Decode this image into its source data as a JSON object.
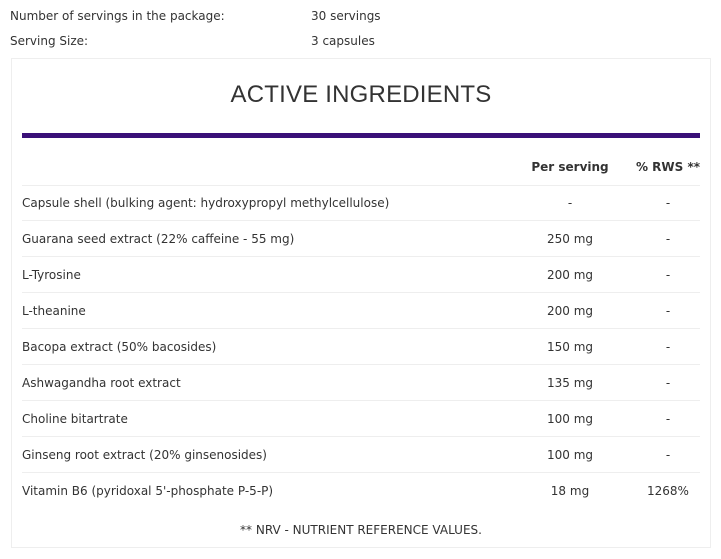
{
  "info": [
    {
      "label": "Number of servings in the package:",
      "value": "30 servings"
    },
    {
      "label": "Serving Size:",
      "value": "3 capsules"
    }
  ],
  "panel": {
    "title": "ACTIVE INGREDIENTS",
    "accent_color": "#3a1078",
    "columns": [
      "",
      "Per serving",
      "% RWS **"
    ],
    "rows": [
      {
        "name": "Capsule shell (bulking agent: hydroxypropyl methylcellulose)",
        "per_serving": "-",
        "rws": "-"
      },
      {
        "name": "Guarana seed extract (22% caffeine - 55 mg)",
        "per_serving": "250 mg",
        "rws": "-"
      },
      {
        "name": "L-Tyrosine",
        "per_serving": "200 mg",
        "rws": "-"
      },
      {
        "name": "L-theanine",
        "per_serving": "200 mg",
        "rws": "-"
      },
      {
        "name": "Bacopa extract (50% bacosides)",
        "per_serving": "150 mg",
        "rws": "-"
      },
      {
        "name": "Ashwagandha root extract",
        "per_serving": "135 mg",
        "rws": "-"
      },
      {
        "name": "Choline bitartrate",
        "per_serving": "100 mg",
        "rws": "-"
      },
      {
        "name": "Ginseng root extract (20% ginsenosides)",
        "per_serving": "100 mg",
        "rws": "-"
      },
      {
        "name": "Vitamin B6 (pyridoxal 5'-phosphate P-5-P)",
        "per_serving": "18 mg",
        "rws": "1268%"
      }
    ],
    "footnote": "** NRV - NUTRIENT REFERENCE VALUES."
  }
}
